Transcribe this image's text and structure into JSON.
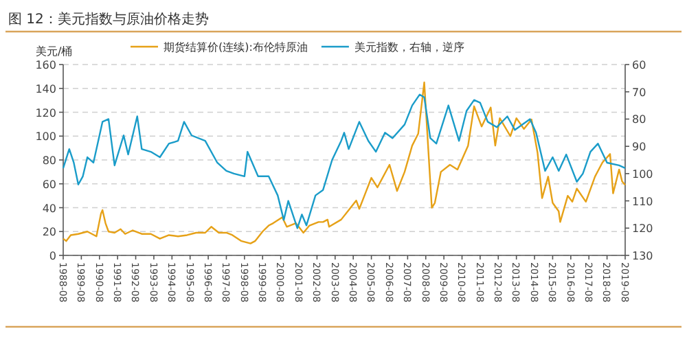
{
  "chart_data": {
    "type": "line",
    "title": "图 12：美元指数与原油价格走势",
    "ylabel": "美元/桶",
    "legend": "top",
    "grid": "y",
    "xlim": [
      "1988-08",
      "2019-08"
    ],
    "xticks": [
      "1988-08",
      "1989-08",
      "1990-08",
      "1991-08",
      "1992-08",
      "1993-08",
      "1994-08",
      "1995-08",
      "1996-08",
      "1997-08",
      "1998-08",
      "1999-08",
      "2000-08",
      "2001-08",
      "2002-08",
      "2003-08",
      "2004-08",
      "2005-08",
      "2006-08",
      "2007-08",
      "2008-08",
      "2009-08",
      "2010-08",
      "2011-08",
      "2012-08",
      "2013-08",
      "2014-08",
      "2015-08",
      "2016-08",
      "2017-08",
      "2018-08",
      "2019-08"
    ],
    "ylim": [
      0,
      160
    ],
    "yticks": [
      0,
      20,
      40,
      60,
      80,
      100,
      120,
      140,
      160
    ],
    "y2lim": [
      130,
      60
    ],
    "y2ticks": [
      60,
      70,
      80,
      90,
      100,
      110,
      120,
      130
    ],
    "series": [
      {
        "name": "期货结算价(连续):布伦特原油",
        "color": "#e6a117",
        "x": [
          "1988-08",
          "1988-10",
          "1989-01",
          "1989-06",
          "1989-12",
          "1990-06",
          "1990-09",
          "1990-10",
          "1990-12",
          "1991-02",
          "1991-06",
          "1991-10",
          "1992-01",
          "1992-06",
          "1992-12",
          "1993-06",
          "1993-12",
          "1994-06",
          "1994-12",
          "1995-06",
          "1995-12",
          "1996-06",
          "1996-10",
          "1997-03",
          "1997-08",
          "1997-12",
          "1998-06",
          "1998-12",
          "1999-03",
          "1999-08",
          "1999-12",
          "2000-03",
          "2000-09",
          "2000-12",
          "2001-06",
          "2001-11",
          "2002-03",
          "2002-09",
          "2002-12",
          "2003-03",
          "2003-04",
          "2003-12",
          "2004-05",
          "2004-10",
          "2004-12",
          "2005-04",
          "2005-08",
          "2005-12",
          "2006-08",
          "2007-01",
          "2007-06",
          "2007-11",
          "2008-03",
          "2008-07",
          "2008-12",
          "2009-02",
          "2009-06",
          "2009-12",
          "2010-05",
          "2010-12",
          "2011-04",
          "2011-09",
          "2012-03",
          "2012-06",
          "2012-09",
          "2013-04",
          "2013-08",
          "2014-01",
          "2014-06",
          "2014-10",
          "2015-01",
          "2015-05",
          "2015-08",
          "2015-12",
          "2016-01",
          "2016-06",
          "2016-09",
          "2016-12",
          "2017-06",
          "2017-12",
          "2018-05",
          "2018-10",
          "2018-12",
          "2019-04",
          "2019-06",
          "2019-08"
        ],
        "values": [
          14,
          12,
          17,
          18,
          20,
          16,
          35,
          38,
          27,
          20,
          19,
          22,
          18,
          21,
          18,
          18,
          14,
          17,
          16,
          17,
          19,
          19,
          24,
          19,
          19,
          17,
          12,
          10,
          12,
          20,
          25,
          27,
          32,
          24,
          27,
          19,
          25,
          28,
          28,
          30,
          24,
          30,
          38,
          46,
          39,
          52,
          65,
          57,
          76,
          54,
          70,
          92,
          102,
          145,
          40,
          44,
          70,
          76,
          72,
          92,
          125,
          108,
          124,
          92,
          115,
          100,
          115,
          106,
          114,
          86,
          48,
          66,
          44,
          37,
          28,
          50,
          45,
          56,
          45,
          66,
          78,
          85,
          52,
          72,
          62,
          59
        ]
      },
      {
        "name": "美元指数，右轴，逆序",
        "color": "#1a9cc9",
        "axis": "y2",
        "x": [
          "1988-08",
          "1988-12",
          "1989-03",
          "1989-06",
          "1989-09",
          "1989-12",
          "1990-04",
          "1990-10",
          "1991-02",
          "1991-06",
          "1991-12",
          "1992-03",
          "1992-09",
          "1992-12",
          "1993-06",
          "1993-12",
          "1994-06",
          "1994-12",
          "1995-04",
          "1995-09",
          "1996-06",
          "1997-02",
          "1997-08",
          "1998-01",
          "1998-08",
          "1998-10",
          "1999-05",
          "1999-12",
          "2000-06",
          "2000-10",
          "2001-01",
          "2001-07",
          "2001-10",
          "2002-01",
          "2002-07",
          "2002-12",
          "2003-06",
          "2003-12",
          "2004-02",
          "2004-05",
          "2004-12",
          "2005-06",
          "2005-11",
          "2006-05",
          "2006-10",
          "2007-06",
          "2007-11",
          "2008-04",
          "2008-07",
          "2008-11",
          "2009-03",
          "2009-11",
          "2010-06",
          "2010-11",
          "2011-04",
          "2011-08",
          "2012-01",
          "2012-07",
          "2013-02",
          "2013-07",
          "2014-05",
          "2014-09",
          "2015-03",
          "2015-08",
          "2015-12",
          "2016-05",
          "2016-12",
          "2017-04",
          "2017-09",
          "2018-02",
          "2018-08",
          "2019-04",
          "2019-08"
        ],
        "values": [
          98,
          91,
          96,
          104,
          101,
          94,
          96,
          81,
          80,
          97,
          86,
          93,
          79,
          91,
          92,
          94,
          89,
          88,
          81,
          86,
          88,
          96,
          99,
          100,
          101,
          92,
          101,
          101,
          108,
          117,
          110,
          120,
          115,
          119,
          108,
          106,
          95,
          88,
          85,
          91,
          81,
          88,
          92,
          85,
          87,
          82,
          75,
          71,
          72,
          87,
          89,
          75,
          88,
          77,
          73,
          74,
          81,
          83,
          79,
          84,
          80,
          85,
          99,
          94,
          99,
          93,
          103,
          100,
          92,
          89,
          96,
          97,
          98
        ]
      }
    ]
  }
}
